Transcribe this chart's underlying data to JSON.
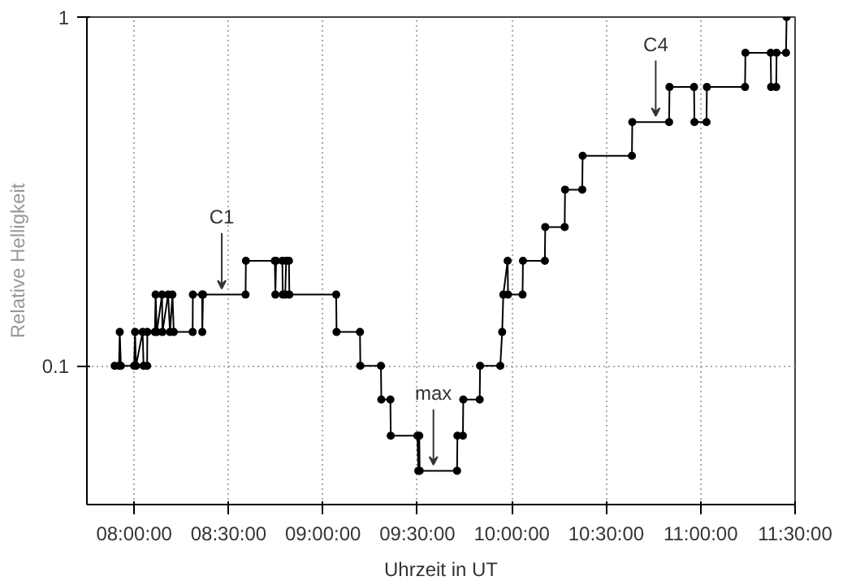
{
  "chart_data": {
    "type": "line",
    "xlabel": "Uhrzeit in UT",
    "ylabel": "Relative Helligkeit",
    "xlim": [
      7.75,
      11.5
    ],
    "ylim": [
      0.04,
      1
    ],
    "log": "y",
    "grid": true,
    "marker": "circle",
    "line_style": "solid",
    "xticks": [
      {
        "value": 8,
        "label": "08:00:00"
      },
      {
        "value": 8.5,
        "label": "08:30:00"
      },
      {
        "value": 9,
        "label": "09:00:00"
      },
      {
        "value": 9.5,
        "label": "09:30:00"
      },
      {
        "value": 10,
        "label": "10:00:00"
      },
      {
        "value": 10.5,
        "label": "10:30:00"
      },
      {
        "value": 11,
        "label": "11:00:00"
      },
      {
        "value": 11.5,
        "label": "11:30:00"
      }
    ],
    "yticks": [
      0.1,
      1
    ],
    "annotations": [
      {
        "text": "C1",
        "x": 8.464,
        "y": 0.16
      },
      {
        "text": "max",
        "x": 9.585,
        "y": 0.05
      },
      {
        "text": "C4",
        "x": 10.762,
        "y": 0.5
      }
    ],
    "x": [
      7.897,
      7.92,
      7.924,
      7.93,
      8.0,
      8.005,
      8.01,
      8.045,
      8.05,
      8.069,
      8.07,
      8.11,
      8.114,
      8.12,
      8.148,
      8.15,
      8.18,
      8.19,
      8.203,
      8.21,
      8.31,
      8.311,
      8.36,
      8.361,
      8.365,
      8.59,
      8.592,
      8.745,
      8.748,
      8.752,
      8.785,
      8.787,
      8.8,
      8.805,
      8.82,
      8.822,
      9.07,
      9.072,
      9.196,
      9.198,
      9.307,
      9.309,
      9.357,
      9.359,
      9.5,
      9.505,
      9.51,
      9.512,
      9.71,
      9.712,
      9.741,
      9.743,
      9.83,
      9.832,
      9.939,
      9.949,
      9.955,
      9.978,
      9.98,
      10.057,
      10.059,
      10.175,
      10.177,
      10.28,
      10.282,
      10.373,
      10.375,
      10.636,
      10.638,
      10.833,
      10.835,
      10.965,
      10.967,
      11.031,
      11.033,
      11.235,
      11.237,
      11.371,
      11.373,
      11.4,
      11.402,
      11.452,
      11.455
    ],
    "series": [
      {
        "color": "#000000",
        "values": [
          0.1,
          0.1,
          0.125,
          0.1,
          0.1,
          0.125,
          0.1,
          0.125,
          0.1,
          0.1,
          0.125,
          0.125,
          0.16,
          0.125,
          0.16,
          0.125,
          0.16,
          0.125,
          0.16,
          0.125,
          0.125,
          0.16,
          0.16,
          0.125,
          0.16,
          0.16,
          0.2,
          0.2,
          0.16,
          0.2,
          0.2,
          0.16,
          0.16,
          0.2,
          0.2,
          0.16,
          0.16,
          0.125,
          0.125,
          0.1,
          0.1,
          0.08,
          0.08,
          0.063,
          0.063,
          0.05,
          0.063,
          0.05,
          0.05,
          0.063,
          0.063,
          0.08,
          0.08,
          0.1,
          0.1,
          0.125,
          0.16,
          0.2,
          0.16,
          0.16,
          0.2,
          0.2,
          0.25,
          0.25,
          0.32,
          0.32,
          0.4,
          0.4,
          0.5,
          0.5,
          0.63,
          0.63,
          0.5,
          0.5,
          0.63,
          0.63,
          0.79,
          0.79,
          0.63,
          0.63,
          0.79,
          0.79,
          1
        ]
      }
    ]
  }
}
